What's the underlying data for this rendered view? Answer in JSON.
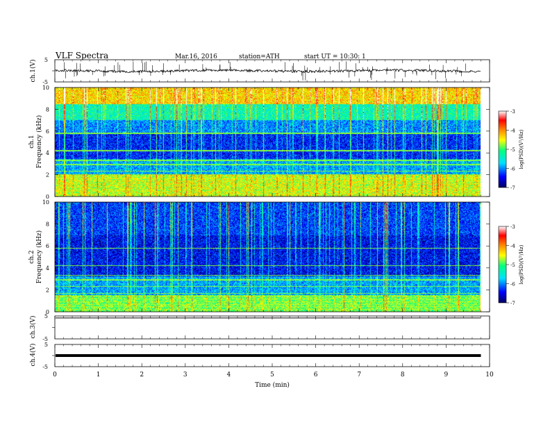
{
  "header": {
    "title": "VLF  Spectra",
    "date": "Mar.16, 2016",
    "station": "station=ATH",
    "start": "start  UT =   10:30: 1"
  },
  "panels": {
    "ch1v_label": "ch.1(V)",
    "ch1_label": "ch.1",
    "ch1_freq_label": "Frequency  (kHz)",
    "ch2_label": "ch.2",
    "ch2_freq_label": "Frequency  (kHz)",
    "ch3v_label": "ch.3(V)",
    "ch4v_label": "ch.4(V)",
    "xlabel": "Time  (min)"
  },
  "colorbar": {
    "label": "log(PSD)(V²/Hz)",
    "ticks": [
      "-3",
      "-4",
      "-5",
      "-6",
      "-7"
    ]
  },
  "chart_data": {
    "type": "heatmap",
    "title": "VLF  Spectra",
    "xlabel": "Time  (min)",
    "xlim": [
      0,
      10
    ],
    "x_ticks": [
      0,
      1,
      2,
      3,
      4,
      5,
      6,
      7,
      8,
      9,
      10
    ],
    "voltage_ticks": [
      5,
      -5
    ],
    "frequency_ticks": [
      0,
      2,
      4,
      6,
      8,
      10
    ],
    "ylim_kHz": [
      0,
      10
    ],
    "color_scale": {
      "label": "log(PSD)(V²/Hz)",
      "range": [
        -7,
        -3
      ],
      "colors": [
        "#000060",
        "#0000ff",
        "#00e0ff",
        "#00ff80",
        "#ffff00",
        "#ff8000",
        "#ff0000",
        "#ffffff"
      ]
    },
    "data_end_min": 9.8,
    "series": [
      {
        "name": "ch.1(V)",
        "kind": "waveform",
        "mean_V": 0,
        "spike_range_V": [
          -5,
          5
        ]
      },
      {
        "name": "ch.1",
        "kind": "spectrogram",
        "bands_kHz": [
          [
            0,
            2.0,
            -4.6
          ],
          [
            2.0,
            3.4,
            -5.9
          ],
          [
            3.4,
            5.8,
            -6.4
          ],
          [
            5.8,
            7.0,
            -6.0
          ],
          [
            7.0,
            8.5,
            -5.3
          ],
          [
            8.5,
            10,
            -4.3
          ]
        ]
      },
      {
        "name": "ch.2",
        "kind": "spectrogram",
        "bands_kHz": [
          [
            0,
            1.5,
            -4.9
          ],
          [
            1.5,
            3.2,
            -5.9
          ],
          [
            3.2,
            7.0,
            -6.5
          ],
          [
            7.0,
            10,
            -6.3
          ]
        ]
      },
      {
        "name": "ch.3(V)",
        "kind": "waveform",
        "mean_V": 5
      },
      {
        "name": "ch.4(V)",
        "kind": "waveform",
        "mean_V": 0
      }
    ]
  }
}
